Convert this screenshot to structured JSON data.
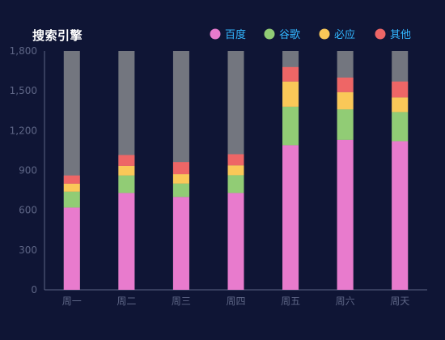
{
  "chart_data": {
    "type": "bar",
    "stacked": true,
    "title": "搜索引擎",
    "categories": [
      "周一",
      "周二",
      "周三",
      "周四",
      "周五",
      "周六",
      "周天"
    ],
    "ylim": [
      0,
      1800
    ],
    "yticks": [
      0,
      300,
      600,
      900,
      1200,
      1500,
      1800
    ],
    "ytick_labels": [
      "0",
      "300",
      "600",
      "900",
      "1,200",
      "1,500",
      "1,800"
    ],
    "legend_position": "top-right",
    "series": [
      {
        "name": "百度",
        "color": "#e87bcd",
        "values": [
          620,
          730,
          700,
          730,
          1090,
          1130,
          1120
        ]
      },
      {
        "name": "谷歌",
        "color": "#91cc75",
        "values": [
          120,
          132,
          101,
          134,
          290,
          230,
          220
        ]
      },
      {
        "name": "必应",
        "color": "#fac858",
        "values": [
          60,
          72,
          71,
          74,
          190,
          130,
          110
        ]
      },
      {
        "name": "其他",
        "color": "#ee6666",
        "values": [
          62,
          82,
          91,
          84,
          109,
          110,
          120
        ]
      }
    ],
    "background_bar": {
      "color": "#73767f",
      "value": 1800
    }
  }
}
